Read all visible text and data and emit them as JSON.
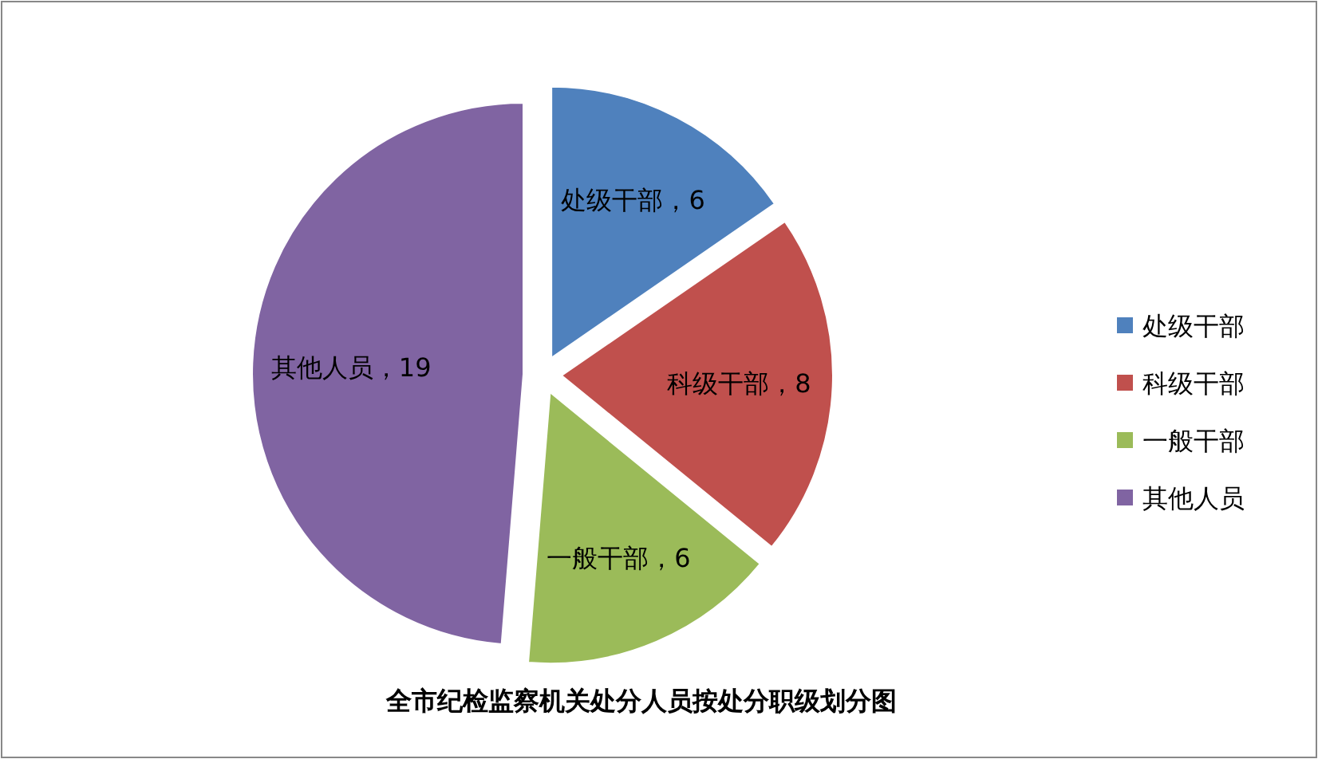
{
  "chart_data": {
    "type": "pie",
    "title": "全市纪检监察机关处分人员按处分职级划分图",
    "categories": [
      "处级干部",
      "科级干部",
      "一般干部",
      "其他人员"
    ],
    "values": [
      6,
      8,
      6,
      19
    ],
    "colors": [
      "#4f81bd",
      "#c0504d",
      "#9bbb59",
      "#8064a2"
    ],
    "value_labels": [
      "，6",
      "，8",
      "，6",
      "，19"
    ],
    "legend": "right"
  }
}
